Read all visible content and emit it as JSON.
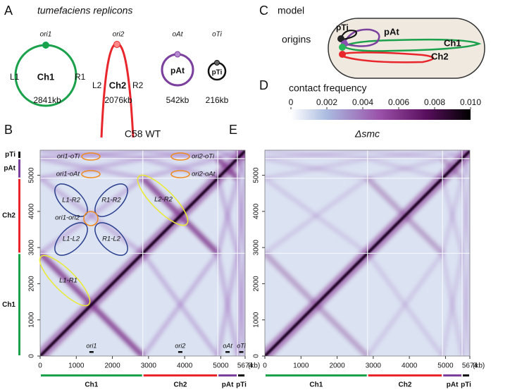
{
  "panel_a": {
    "letter": "A",
    "title": "tumefaciens replicons",
    "replicons": [
      {
        "origin": "ori1",
        "name": "Ch1",
        "left": "L1",
        "right": "R1",
        "size": 2841,
        "size_label": "2841kb",
        "color": "#1ba14b"
      },
      {
        "origin": "ori2",
        "name": "Ch2",
        "left": "L2",
        "right": "R2",
        "size": 2076,
        "size_label": "2076kb",
        "color": "#e8262c"
      },
      {
        "origin": "oAt",
        "name": "pAt",
        "size": 542,
        "size_label": "542kb",
        "color": "#7b3f9d"
      },
      {
        "origin": "oTi",
        "name": "pTi",
        "size": 216,
        "size_label": "216kb",
        "color": "#111111"
      }
    ]
  },
  "panel_c": {
    "letter": "C",
    "title": "model",
    "label": "origins"
  },
  "panel_d": {
    "letter": "D",
    "title": "contact frequency",
    "lim": [
      0,
      0.01
    ],
    "ticks": [
      0,
      0.002,
      0.004,
      0.006,
      0.008,
      {
        "value": 0.01,
        "label": "0.010"
      }
    ]
  },
  "axis": {
    "lim": [
      0,
      5674
    ],
    "xticks": [
      0,
      1000,
      2000,
      3000,
      4000,
      5000,
      5674
    ],
    "yticks": [
      0,
      1000,
      2000,
      3000,
      4000,
      5000
    ],
    "unit": "(kb)"
  },
  "heatmaps": [
    {
      "letter": "B",
      "title": "C58 WT",
      "annotations": [
        "ori1-oTi",
        "ori2-oTi",
        "ori1-oAt",
        "ori2-oAt",
        "L1-R2",
        "R1-R2",
        "ori1-ori2",
        "L1-L2",
        "R1-L2",
        "L2-R2",
        "L1-R1"
      ]
    },
    {
      "letter": "E",
      "title": "Δsmc"
    }
  ]
}
